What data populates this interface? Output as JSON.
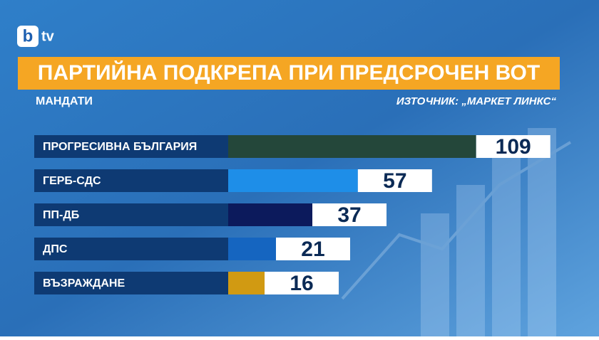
{
  "logo": {
    "mark": "b",
    "text": "tv"
  },
  "chart_data": {
    "type": "bar",
    "title": "ПАРТИЙНА ПОДКРЕПА ПРИ ПРЕДСРОЧЕН ВОТ",
    "subtitle": "МАНДАТИ",
    "source": "ИЗТОЧНИК: „МАРКЕТ ЛИНКС“",
    "categories": [
      "ПРОГРЕСИВНА БЪЛГАРИЯ",
      "ГЕРБ-СДС",
      "ПП-ДБ",
      "ДПС",
      "ВЪЗРАЖДАНЕ"
    ],
    "values": [
      109,
      57,
      37,
      21,
      16
    ],
    "colors": [
      "#24473a",
      "#1e8ee8",
      "#0c1a5c",
      "#1565c0",
      "#d19a12"
    ]
  }
}
